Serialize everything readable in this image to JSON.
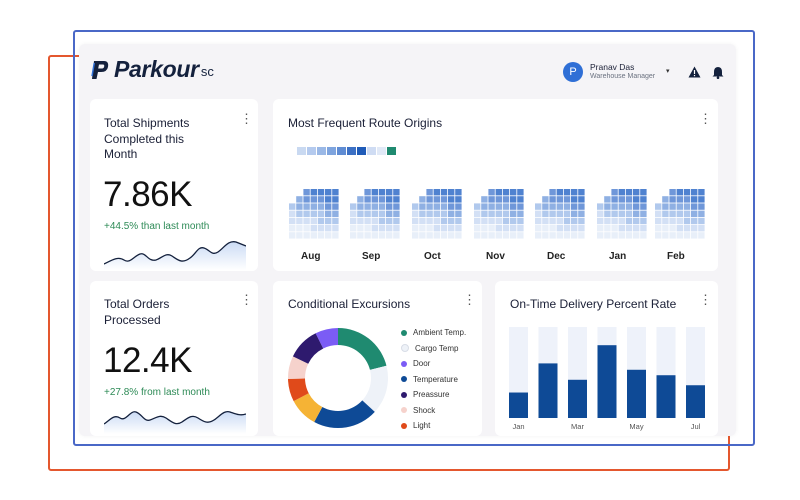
{
  "header": {
    "logo_text": "Parkour",
    "logo_suffix": "sc",
    "user": {
      "initial": "P",
      "name": "Pranav Das",
      "role": "Warehouse Manager"
    },
    "icons": [
      "chevron-down-icon",
      "warning-icon",
      "bell-icon"
    ]
  },
  "colors": {
    "accent": "#2f6fd6",
    "positive": "#2e8b57",
    "bar": "#0e4a96",
    "bar_track": "#eef2fa",
    "frame_orange": "#e4572e",
    "frame_blue": "#4a68c7"
  },
  "shipments": {
    "title_lines": [
      "Total Shipments",
      "Completed this",
      "Month"
    ],
    "value": "7.86K",
    "delta": "+44.5% than last month"
  },
  "orders": {
    "title_lines": [
      "Total Orders",
      "Processed"
    ],
    "value": "12.4K",
    "delta": "+27.8% from last month"
  },
  "route_origins": {
    "title": "Most Frequent Route Origins",
    "months": [
      "Aug",
      "Sep",
      "Oct",
      "Nov",
      "Dec",
      "Jan",
      "Feb"
    ]
  },
  "excursions": {
    "title": "Conditional Excursions",
    "chart_data": {
      "type": "pie",
      "categories": [
        "Ambient Temp.",
        "Cargo Temp",
        "Door",
        "Temperature",
        "Preassure",
        "Shock",
        "Light"
      ],
      "values": [
        20,
        15,
        7,
        20,
        10,
        7,
        9
      ],
      "colors": [
        "#1f8a70",
        "#eef2f8",
        "#7b5cf5",
        "#0e4a96",
        "#2e1a6e",
        "#f6d2cc",
        "#e04a1a"
      ],
      "extra_segments": [
        {
          "color": "#f5b335",
          "value": 9
        },
        {
          "color": "#e04a1a",
          "value": 7
        }
      ]
    }
  },
  "on_time": {
    "title": "On-Time Delivery Percent Rate",
    "chart_data": {
      "type": "bar",
      "categories": [
        "Jan",
        "",
        "Mar",
        "",
        "May",
        "",
        "Jul"
      ],
      "values": [
        28,
        60,
        42,
        80,
        53,
        47,
        36
      ],
      "ylim": [
        0,
        100
      ]
    }
  }
}
